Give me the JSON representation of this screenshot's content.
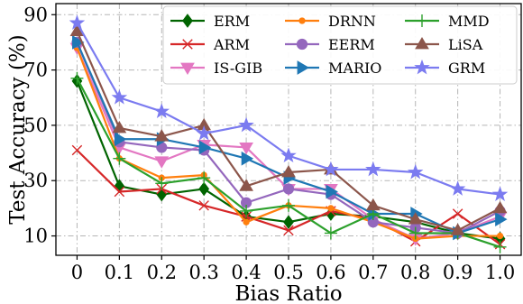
{
  "chart_data": {
    "type": "line",
    "title": "",
    "xlabel": "Bias Ratio",
    "ylabel": "Test Accuracy (%)",
    "xlim": [
      -0.05,
      1.05
    ],
    "ylim": [
      3,
      94
    ],
    "x": [
      0,
      0.1,
      0.2,
      0.3,
      0.4,
      0.5,
      0.6,
      0.7,
      0.8,
      0.9,
      1.0
    ],
    "x_tick_labels": [
      "0",
      "0.1",
      "0.2",
      "0.3",
      "0.4",
      "0.5",
      "0.6",
      "0.7",
      "0.8",
      "0.9",
      "1.0"
    ],
    "y_ticks": [
      10,
      30,
      50,
      70,
      90
    ],
    "y_tick_labels": [
      "10",
      "30",
      "50",
      "70",
      "90"
    ],
    "grid": true,
    "legend_position": "top-right",
    "series": [
      {
        "name": "ERM",
        "color": "#006400",
        "marker": "diamond",
        "values": [
          66,
          28,
          25,
          27,
          17,
          15,
          18,
          17,
          15,
          11,
          9
        ]
      },
      {
        "name": "ARM",
        "color": "#d62728",
        "marker": "x",
        "values": [
          41,
          26,
          27,
          21,
          17,
          12,
          19,
          16,
          8,
          18,
          7
        ]
      },
      {
        "name": "IS-GIB",
        "color": "#e377c2",
        "marker": "triangle-down",
        "values": [
          78,
          42,
          37,
          43,
          42,
          27,
          27,
          16,
          9,
          11,
          17
        ]
      },
      {
        "name": "DRNN",
        "color": "#ff7f0e",
        "marker": "circle-small",
        "values": [
          78,
          38,
          31,
          32,
          15,
          21,
          20,
          15,
          9,
          10,
          10
        ]
      },
      {
        "name": "EERM",
        "color": "#9467bd",
        "marker": "circle",
        "values": [
          80,
          44,
          42,
          41,
          22,
          27,
          25,
          15,
          13,
          11,
          19
        ]
      },
      {
        "name": "MARIO",
        "color": "#1f77b4",
        "marker": "triangle-right",
        "values": [
          80,
          45,
          45,
          42,
          38,
          31,
          26,
          18,
          18,
          11,
          16
        ]
      },
      {
        "name": "MMD",
        "color": "#2ca02c",
        "marker": "plus",
        "values": [
          67,
          38,
          29,
          31,
          19,
          21,
          11,
          18,
          11,
          11,
          6
        ]
      },
      {
        "name": "LiSA",
        "color": "#8c564b",
        "marker": "triangle-up",
        "values": [
          84,
          49,
          46,
          50,
          28,
          33,
          34,
          21,
          16,
          12,
          20
        ]
      },
      {
        "name": "GRM",
        "color": "#7b7bf0",
        "marker": "star",
        "values": [
          87,
          60,
          55,
          47,
          50,
          39,
          34,
          34,
          33,
          27,
          25
        ]
      }
    ],
    "legend_order": [
      "ERM",
      "ARM",
      "IS-GIB",
      "DRNN",
      "EERM",
      "MARIO",
      "MMD",
      "LiSA",
      "GRM"
    ]
  }
}
